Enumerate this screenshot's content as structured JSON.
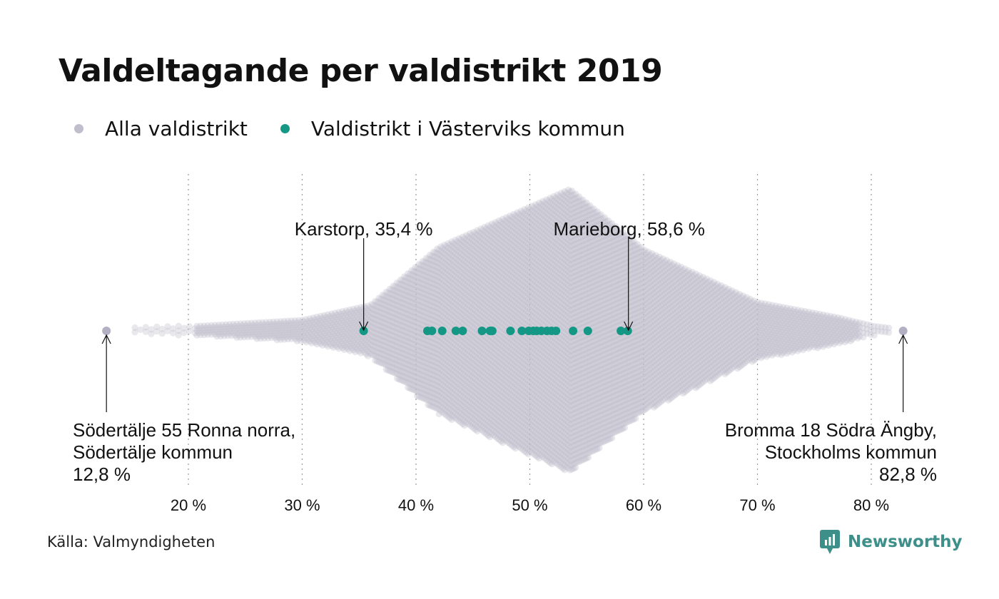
{
  "title": "Valdeltagande per valdistrikt 2019",
  "legend": [
    {
      "label": "Alla valdistrikt",
      "color": "#c0bdcc"
    },
    {
      "label": "Valdistrikt i Västerviks kommun",
      "color": "#159785"
    }
  ],
  "source": "Källa: Valmyndigheten",
  "brand": {
    "name": "Newsworthy",
    "icon": "newsworthy-logo-icon",
    "color": "#3d8f8a"
  },
  "chart_data": {
    "type": "scatter",
    "subtype": "beeswarm",
    "title": "Valdeltagande per valdistrikt 2019",
    "xlabel": "",
    "ylabel": "",
    "xlim": [
      12.8,
      82.8
    ],
    "x_ticks": [
      20,
      30,
      40,
      50,
      60,
      70,
      80
    ],
    "x_tick_labels": [
      "20 %",
      "30 %",
      "40 %",
      "50 %",
      "60 %",
      "70 %",
      "80 %"
    ],
    "grid": "vertical dotted",
    "legend_position": "top-left",
    "series": [
      {
        "name": "Alla valdistrikt",
        "color": "#c0bdcc",
        "distribution_note": "dense swarm, peak around 53.5 %, min 12.8, max 82.8",
        "x_min": 12.8,
        "x_max": 82.8,
        "x_peak": 53.5
      },
      {
        "name": "Valdistrikt i Västerviks kommun",
        "color": "#159785",
        "x": [
          35.4,
          41.0,
          41.4,
          42.3,
          43.5,
          44.1,
          45.8,
          46.5,
          46.7,
          48.3,
          49.3,
          49.9,
          50.3,
          50.6,
          51.0,
          51.5,
          51.9,
          52.3,
          53.8,
          55.1,
          58.0,
          58.6
        ]
      }
    ],
    "annotations": [
      {
        "text": "Karstorp, 35,4 %",
        "x": 35.4
      },
      {
        "text": "Marieborg, 58,6 %",
        "x": 58.6
      },
      {
        "lines": [
          "Södertälje 55 Ronna norra,",
          "Södertälje kommun",
          "12,8 %"
        ],
        "x": 12.8
      },
      {
        "lines": [
          "Bromma 18 Södra Ängby,",
          "Stockholms kommun",
          "82,8 %"
        ],
        "x": 82.8
      }
    ]
  }
}
